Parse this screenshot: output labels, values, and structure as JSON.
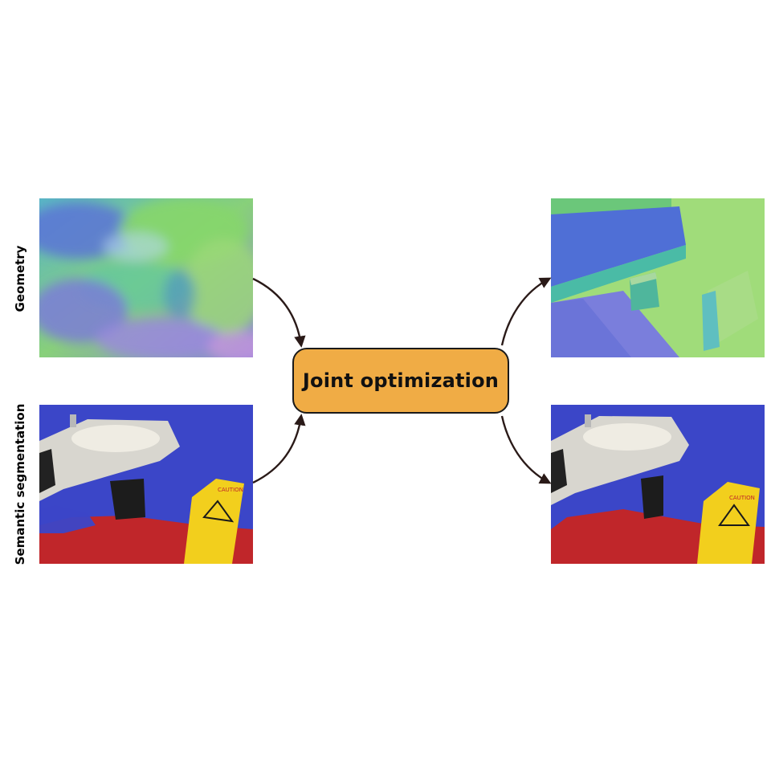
{
  "rows": {
    "geometry_label": "Geometry",
    "semantic_label": "Semantic segmentation"
  },
  "center": {
    "label": "Joint optimization",
    "color": "#f0ac45"
  },
  "colors": {
    "seg_wall": "#3b46c8",
    "seg_floor": "#c0262a",
    "seg_sign": "#f2cf1d",
    "arrow": "#2a1a18"
  },
  "panels": {
    "input_geometry": "noisy-normal-map",
    "input_semantic": "noisy-segmentation",
    "output_geometry": "refined-normal-map",
    "output_semantic": "refined-segmentation",
    "sign_text": "CAUTION"
  }
}
